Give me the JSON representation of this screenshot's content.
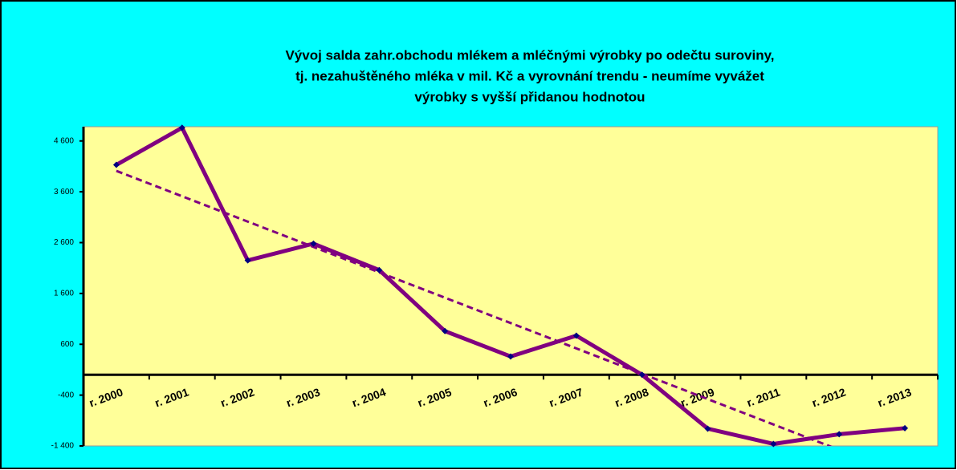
{
  "chart_data": {
    "type": "line",
    "title": [
      "Vývoj salda zahr.obchodu mlékem a mléčnými  výrobky po odečtu suroviny,",
      "tj. nezahuštěného  mléka  v  mil. Kč a vyrovnání trendu - neumíme vyvážet",
      "výrobky s vyšší přidanou hodnotou"
    ],
    "categories": [
      "r. 2000",
      "r. 2001",
      "r. 2002",
      "r. 2003",
      "r. 2004",
      "r. 2005",
      "r. 2006",
      "r. 2007",
      "r. 2008",
      "r. 2009",
      "r. 2011",
      "r. 2012",
      "r. 2013"
    ],
    "series": [
      {
        "color": "#800080",
        "marker_color": "#000080",
        "values": [
          4130,
          4860,
          2250,
          2580,
          2060,
          860,
          360,
          770,
          0,
          -1060,
          -1360,
          -1170,
          -1050
        ]
      }
    ],
    "trendline": {
      "type": "linear",
      "color": "#800080",
      "dashed": true
    },
    "ylim": [
      -1400,
      4880
    ],
    "yticks": [
      {
        "value": 4600,
        "label": "4 600"
      },
      {
        "value": 3600,
        "label": "3 600"
      },
      {
        "value": 2600,
        "label": "2 600"
      },
      {
        "value": 1600,
        "label": "1 600"
      },
      600,
      -400,
      {
        "value": -1400,
        "label": "-1 400"
      }
    ],
    "grid": false
  }
}
